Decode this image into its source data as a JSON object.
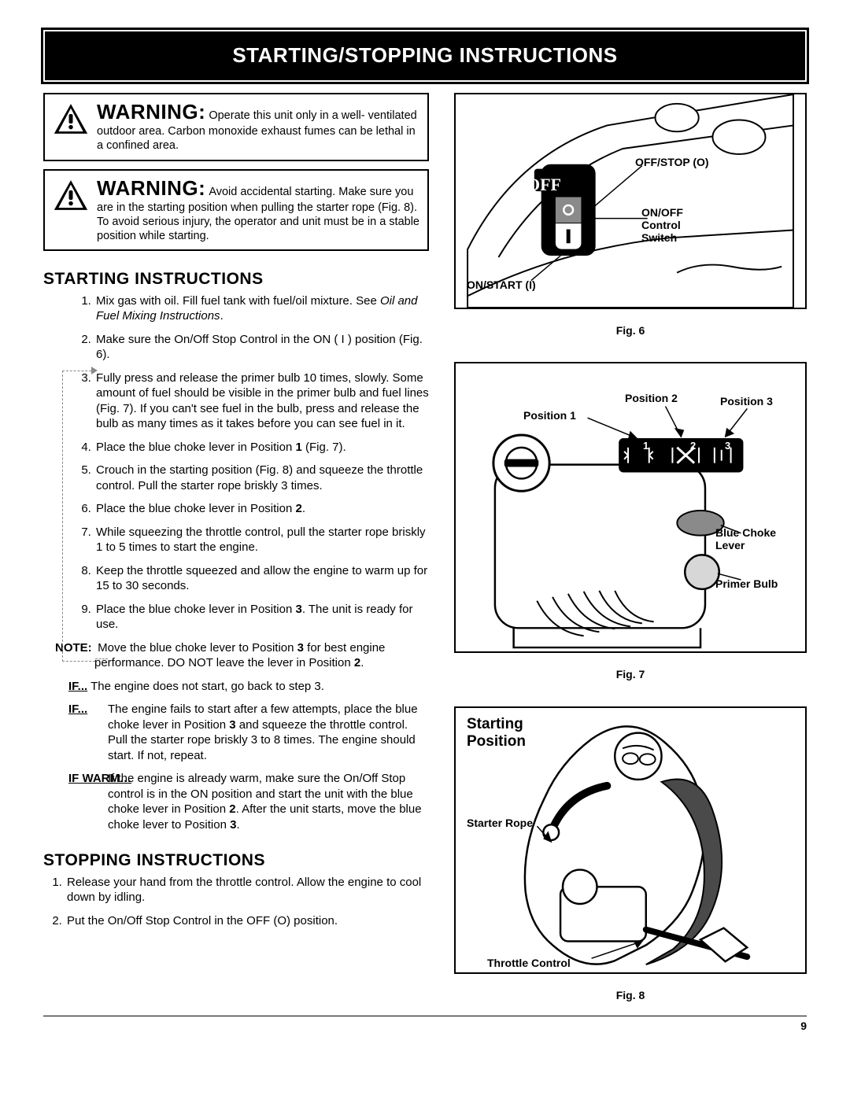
{
  "page_number": "9",
  "title": "STARTING/STOPPING INSTRUCTIONS",
  "warnings": [
    {
      "lead": "WARNING:",
      "text": "Operate this unit only in a well- ventilated outdoor area. Carbon monoxide exhaust fumes can be lethal in a confined area."
    },
    {
      "lead": "WARNING:",
      "text": "Avoid accidental starting. Make sure you are in the starting position when pulling the starter rope (Fig. 8). To avoid serious injury, the operator and unit must be in a stable position while starting."
    }
  ],
  "starting": {
    "heading": "STARTING INSTRUCTIONS",
    "items": [
      {
        "pre": "Mix gas with oil. Fill fuel tank with fuel/oil mixture. See ",
        "ital": "Oil and Fuel Mixing Instructions",
        "post": "."
      },
      {
        "text": "Make sure the On/Off Stop Control in the ON ( I ) position (Fig. 6)."
      },
      {
        "text": "Fully press and release the primer bulb 10 times, slowly. Some amount of fuel should be visible in the primer bulb and fuel lines (Fig. 7). If you can't see fuel in the bulb, press and release the bulb as many times as it takes before you can see fuel in it."
      },
      {
        "html": "Place the blue choke lever in Position <b>1</b> (Fig. 7)."
      },
      {
        "text": "Crouch in the starting position (Fig. 8) and squeeze the throttle control. Pull the starter rope briskly 3 times."
      },
      {
        "html": "Place the blue choke lever in Position <b>2</b>."
      },
      {
        "text": "While squeezing the throttle control, pull the starter rope briskly 1 to 5 times to start the engine."
      },
      {
        "text": "Keep the throttle squeezed and allow the engine to warm up for 15 to 30 seconds."
      },
      {
        "html": "Place the blue choke lever in Position <b>3</b>. The unit is ready for use."
      }
    ],
    "note": {
      "lead": "NOTE:",
      "html": " Move the blue choke lever to Position <b>3</b> for best engine performance. DO NOT leave the lever in Position <b>2</b>."
    },
    "ifs": [
      {
        "lead": "IF...",
        "text": " The engine does not start, go back to step 3."
      },
      {
        "lead": "IF...",
        "html": " The engine fails to start after a few attempts, place the blue choke lever in Position <b>3</b> and squeeze the throttle control. Pull the starter rope briskly 3 to 8 times. The engine should start. If not, repeat."
      },
      {
        "lead": "IF WARM…",
        "html": " If the engine is already warm, make sure the On/Off Stop control is in the ON position and start the unit with the blue choke lever in Position <b>2</b>. After the unit starts, move the blue choke lever to Position <b>3</b>."
      }
    ]
  },
  "stopping": {
    "heading": "STOPPING INSTRUCTIONS",
    "items": [
      "Release your hand from the throttle control. Allow the engine to cool down by idling.",
      "Put the On/Off Stop Control in the OFF (O) position."
    ]
  },
  "fig6": {
    "label": "Fig. 6",
    "off_badge": "OFF",
    "callouts": {
      "off": "OFF/STOP (O)",
      "on": "ON/START (I)",
      "switch": "ON/OFF\nControl\nSwitch"
    }
  },
  "fig7": {
    "label": "Fig. 7",
    "callouts": {
      "p1": "Position 1",
      "p2": "Position 2",
      "p3": "Position 3",
      "choke": "Blue Choke\nLever",
      "primer": "Primer Bulb"
    },
    "panel": {
      "n1": "1",
      "n2": "2",
      "n3": "3"
    }
  },
  "fig8": {
    "label": "Fig. 8",
    "heading": "Starting\nPosition",
    "callouts": {
      "rope": "Starter Rope",
      "throttle": "Throttle Control"
    }
  },
  "colors": {
    "black": "#000000",
    "white": "#ffffff",
    "gray": "#8a8a8a",
    "darkgray": "#4a4a4a",
    "lightgray": "#d7d7d7"
  }
}
